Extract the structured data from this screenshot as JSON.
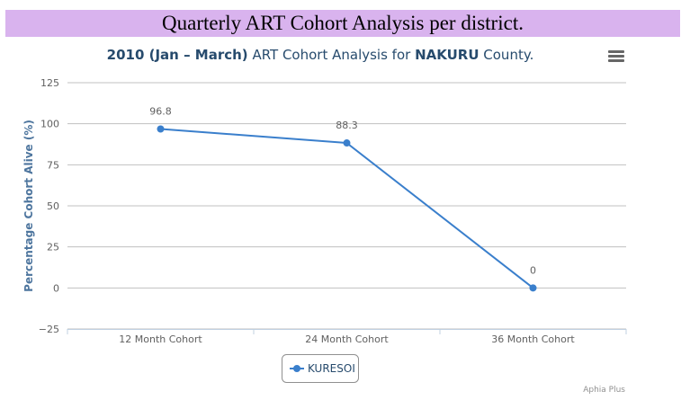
{
  "banner": {
    "title": "Quarterly ART Cohort Analysis per district."
  },
  "chart": {
    "title_parts": [
      {
        "text": "2010 (Jan – March)",
        "bold": true
      },
      {
        "text": " ART Cohort Analysis for ",
        "bold": false
      },
      {
        "text": "NAKURU",
        "bold": true
      },
      {
        "text": " County.",
        "bold": false
      }
    ],
    "credits": "Aphia Plus",
    "menu_icon": "hamburger-icon"
  },
  "chart_data": {
    "type": "line",
    "categories": [
      "12 Month Cohort",
      "24 Month Cohort",
      "36 Month Cohort"
    ],
    "series": [
      {
        "name": "KURESOI",
        "values": [
          96.8,
          88.3,
          0
        ],
        "color": "#3a7fcc"
      }
    ],
    "ylabel": "Percentage Cohort Alive (%)",
    "ylim": [
      -25,
      125
    ],
    "yticks": [
      -25,
      0,
      25,
      50,
      75,
      100,
      125
    ],
    "grid": true,
    "data_labels": true,
    "legend_position": "bottom-center"
  }
}
